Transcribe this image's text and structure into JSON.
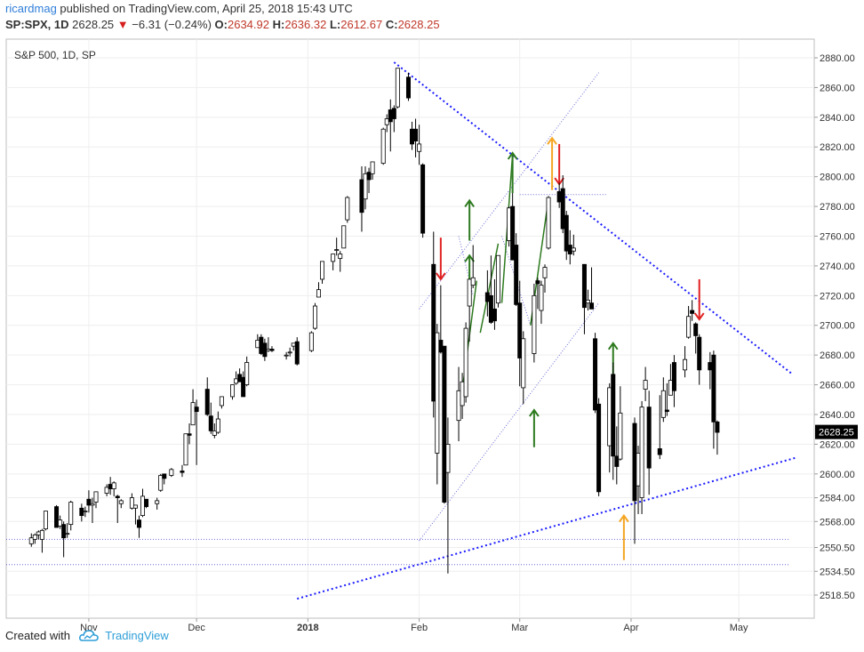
{
  "header": {
    "author": "ricardmag",
    "published_text": "published on TradingView.com, April 25, 2018 15:43 UTC",
    "symbol": "SP:SPX, 1D",
    "price": "2628.25",
    "change": "−6.31 (−0.24%)",
    "o_label": "O:",
    "o_value": "2634.92",
    "h_label": "H:",
    "h_value": "2636.32",
    "l_label": "L:",
    "l_value": "2612.67",
    "c_label": "C:",
    "c_value": "2628.25"
  },
  "footer": {
    "created_with": "Created with",
    "brand": "TradingView"
  },
  "chart_data": {
    "type": "candlestick",
    "title": "S&P 500, 1D, SP",
    "last_price_label": "2628.25",
    "y_ticks": [
      2518.5,
      2534.5,
      2550.5,
      2568.0,
      2584.0,
      2600.0,
      2620.0,
      2640.0,
      2660.0,
      2680.0,
      2700.0,
      2720.0,
      2740.0,
      2760.0,
      2780.0,
      2800.0,
      2820.0,
      2840.0,
      2860.0,
      2880.0
    ],
    "y_tick_labels": [
      "2518.50",
      "2534.50",
      "2550.50",
      "2568.00",
      "2584.00",
      "2600.00",
      "2620.00",
      "2640.00",
      "2660.00",
      "2680.00",
      "2700.00",
      "2720.00",
      "2740.00",
      "2760.00",
      "2780.00",
      "2800.00",
      "2820.00",
      "2840.00",
      "2860.00",
      "2880.00"
    ],
    "ylim": [
      2510,
      2890
    ],
    "x_labels": [
      "Nov",
      "Dec",
      "2018",
      "Feb",
      "Mar",
      "Apr",
      "May"
    ],
    "x_label_dates": [
      "2017-11-01",
      "2017-12-01",
      "2018-01-01",
      "2018-02-01",
      "2018-03-01",
      "2018-04-01",
      "2018-05-01"
    ],
    "xlim": [
      "2017-10-16",
      "2018-05-18"
    ],
    "grid": true,
    "colors": {
      "up_fill": "#ffffff",
      "down_fill": "#000000",
      "candle_stroke": "#000000",
      "trend": "#1a1aff",
      "arrow_up": "#2d7a1f",
      "arrow_down": "#e02020",
      "arrow_orange": "#f5a623",
      "last_price_bg": "#000000"
    },
    "candles": [
      {
        "d": "2017-10-16",
        "o": 2553,
        "h": 2560,
        "l": 2551,
        "c": 2557
      },
      {
        "d": "2017-10-17",
        "o": 2556,
        "h": 2560,
        "l": 2553,
        "c": 2559
      },
      {
        "d": "2017-10-18",
        "o": 2559,
        "h": 2562,
        "l": 2556,
        "c": 2561
      },
      {
        "d": "2017-10-19",
        "o": 2556,
        "h": 2563,
        "l": 2547,
        "c": 2562
      },
      {
        "d": "2017-10-20",
        "o": 2563,
        "h": 2575,
        "l": 2562,
        "c": 2575
      },
      {
        "d": "2017-10-23",
        "o": 2578,
        "h": 2579,
        "l": 2564,
        "c": 2564
      },
      {
        "d": "2017-10-24",
        "o": 2565,
        "h": 2572,
        "l": 2563,
        "c": 2569
      },
      {
        "d": "2017-10-25",
        "o": 2566,
        "h": 2568,
        "l": 2544,
        "c": 2557
      },
      {
        "d": "2017-10-26",
        "o": 2560,
        "h": 2567,
        "l": 2557,
        "c": 2560
      },
      {
        "d": "2017-10-27",
        "o": 2566,
        "h": 2582,
        "l": 2562,
        "c": 2581
      },
      {
        "d": "2017-10-30",
        "o": 2577,
        "h": 2580,
        "l": 2568,
        "c": 2572
      },
      {
        "d": "2017-10-31",
        "o": 2575,
        "h": 2578,
        "l": 2571,
        "c": 2575
      },
      {
        "d": "2017-11-01",
        "o": 2583,
        "h": 2589,
        "l": 2574,
        "c": 2579
      },
      {
        "d": "2017-11-02",
        "o": 2579,
        "h": 2584,
        "l": 2567,
        "c": 2580
      },
      {
        "d": "2017-11-03",
        "o": 2581,
        "h": 2588,
        "l": 2577,
        "c": 2588
      },
      {
        "d": "2017-11-06",
        "o": 2587,
        "h": 2593,
        "l": 2585,
        "c": 2591
      },
      {
        "d": "2017-11-07",
        "o": 2593,
        "h": 2598,
        "l": 2586,
        "c": 2590
      },
      {
        "d": "2017-11-08",
        "o": 2590,
        "h": 2595,
        "l": 2585,
        "c": 2594
      },
      {
        "d": "2017-11-09",
        "o": 2585,
        "h": 2586,
        "l": 2567,
        "c": 2584
      },
      {
        "d": "2017-11-10",
        "o": 2580,
        "h": 2583,
        "l": 2577,
        "c": 2582
      },
      {
        "d": "2017-11-13",
        "o": 2577,
        "h": 2587,
        "l": 2576,
        "c": 2584
      },
      {
        "d": "2017-11-14",
        "o": 2577,
        "h": 2579,
        "l": 2566,
        "c": 2579
      },
      {
        "d": "2017-11-15",
        "o": 2569,
        "h": 2572,
        "l": 2557,
        "c": 2564
      },
      {
        "d": "2017-11-16",
        "o": 2572,
        "h": 2590,
        "l": 2571,
        "c": 2585
      },
      {
        "d": "2017-11-17",
        "o": 2583,
        "h": 2583,
        "l": 2577,
        "c": 2578
      },
      {
        "d": "2017-11-20",
        "o": 2580,
        "h": 2584,
        "l": 2576,
        "c": 2582
      },
      {
        "d": "2017-11-21",
        "o": 2589,
        "h": 2600,
        "l": 2588,
        "c": 2599
      },
      {
        "d": "2017-11-22",
        "o": 2600,
        "h": 2600,
        "l": 2593,
        "c": 2597
      },
      {
        "d": "2017-11-24",
        "o": 2599,
        "h": 2604,
        "l": 2598,
        "c": 2603
      },
      {
        "d": "2017-11-27",
        "o": 2602,
        "h": 2606,
        "l": 2598,
        "c": 2601
      },
      {
        "d": "2017-11-28",
        "o": 2606,
        "h": 2627,
        "l": 2606,
        "c": 2627
      },
      {
        "d": "2017-11-29",
        "o": 2627,
        "h": 2634,
        "l": 2620,
        "c": 2626
      },
      {
        "d": "2017-11-30",
        "o": 2633,
        "h": 2657,
        "l": 2633,
        "c": 2648
      },
      {
        "d": "2017-12-01",
        "o": 2645,
        "h": 2650,
        "l": 2606,
        "c": 2642
      },
      {
        "d": "2017-12-04",
        "o": 2657,
        "h": 2665,
        "l": 2639,
        "c": 2640
      },
      {
        "d": "2017-12-05",
        "o": 2639,
        "h": 2648,
        "l": 2627,
        "c": 2629
      },
      {
        "d": "2017-12-06",
        "o": 2626,
        "h": 2634,
        "l": 2624,
        "c": 2629
      },
      {
        "d": "2017-12-07",
        "o": 2628,
        "h": 2642,
        "l": 2627,
        "c": 2637
      },
      {
        "d": "2017-12-08",
        "o": 2646,
        "h": 2651,
        "l": 2644,
        "c": 2652
      },
      {
        "d": "2017-12-11",
        "o": 2652,
        "h": 2660,
        "l": 2650,
        "c": 2660
      },
      {
        "d": "2017-12-12",
        "o": 2661,
        "h": 2669,
        "l": 2660,
        "c": 2664
      },
      {
        "d": "2017-12-13",
        "o": 2667,
        "h": 2671,
        "l": 2662,
        "c": 2662
      },
      {
        "d": "2017-12-14",
        "o": 2665,
        "h": 2669,
        "l": 2652,
        "c": 2652
      },
      {
        "d": "2017-12-15",
        "o": 2660,
        "h": 2679,
        "l": 2659,
        "c": 2675
      },
      {
        "d": "2017-12-18",
        "o": 2685,
        "h": 2694,
        "l": 2685,
        "c": 2690
      },
      {
        "d": "2017-12-19",
        "o": 2692,
        "h": 2694,
        "l": 2680,
        "c": 2681
      },
      {
        "d": "2017-12-20",
        "o": 2688,
        "h": 2691,
        "l": 2676,
        "c": 2679
      },
      {
        "d": "2017-12-21",
        "o": 2683,
        "h": 2692,
        "l": 2682,
        "c": 2684
      },
      {
        "d": "2017-12-22",
        "o": 2684,
        "h": 2686,
        "l": 2682,
        "c": 2683
      },
      {
        "d": "2017-12-26",
        "o": 2680,
        "h": 2682,
        "l": 2677,
        "c": 2680
      },
      {
        "d": "2017-12-27",
        "o": 2682,
        "h": 2685,
        "l": 2679,
        "c": 2682
      },
      {
        "d": "2017-12-28",
        "o": 2686,
        "h": 2688,
        "l": 2683,
        "c": 2688
      },
      {
        "d": "2017-12-29",
        "o": 2689,
        "h": 2692,
        "l": 2673,
        "c": 2674
      },
      {
        "d": "2018-01-02",
        "o": 2683,
        "h": 2696,
        "l": 2682,
        "c": 2695
      },
      {
        "d": "2018-01-03",
        "o": 2698,
        "h": 2715,
        "l": 2697,
        "c": 2713
      },
      {
        "d": "2018-01-04",
        "o": 2719,
        "h": 2729,
        "l": 2719,
        "c": 2724
      },
      {
        "d": "2018-01-05",
        "o": 2731,
        "h": 2743,
        "l": 2728,
        "c": 2743
      },
      {
        "d": "2018-01-08",
        "o": 2743,
        "h": 2748,
        "l": 2737,
        "c": 2748
      },
      {
        "d": "2018-01-09",
        "o": 2751,
        "h": 2759,
        "l": 2747,
        "c": 2751
      },
      {
        "d": "2018-01-10",
        "o": 2745,
        "h": 2750,
        "l": 2736,
        "c": 2748
      },
      {
        "d": "2018-01-11",
        "o": 2752,
        "h": 2767,
        "l": 2752,
        "c": 2767
      },
      {
        "d": "2018-01-12",
        "o": 2771,
        "h": 2787,
        "l": 2769,
        "c": 2786
      },
      {
        "d": "2018-01-16",
        "o": 2798,
        "h": 2807,
        "l": 2763,
        "c": 2776
      },
      {
        "d": "2018-01-17",
        "o": 2785,
        "h": 2807,
        "l": 2778,
        "c": 2802
      },
      {
        "d": "2018-01-18",
        "o": 2803,
        "h": 2806,
        "l": 2789,
        "c": 2798
      },
      {
        "d": "2018-01-19",
        "o": 2802,
        "h": 2810,
        "l": 2798,
        "c": 2810
      },
      {
        "d": "2018-01-22",
        "o": 2809,
        "h": 2833,
        "l": 2808,
        "c": 2832
      },
      {
        "d": "2018-01-23",
        "o": 2835,
        "h": 2842,
        "l": 2830,
        "c": 2839
      },
      {
        "d": "2018-01-24",
        "o": 2845,
        "h": 2852,
        "l": 2817,
        "c": 2837
      },
      {
        "d": "2018-01-25",
        "o": 2846,
        "h": 2848,
        "l": 2830,
        "c": 2839
      },
      {
        "d": "2018-01-26",
        "o": 2847,
        "h": 2873,
        "l": 2846,
        "c": 2873
      },
      {
        "d": "2018-01-29",
        "o": 2867,
        "h": 2870,
        "l": 2851,
        "c": 2853
      },
      {
        "d": "2018-01-30",
        "o": 2832,
        "h": 2837,
        "l": 2818,
        "c": 2822
      },
      {
        "d": "2018-01-31",
        "o": 2832,
        "h": 2839,
        "l": 2813,
        "c": 2824
      },
      {
        "d": "2018-02-01",
        "o": 2817,
        "h": 2835,
        "l": 2808,
        "c": 2822
      },
      {
        "d": "2018-02-02",
        "o": 2808,
        "h": 2809,
        "l": 2759,
        "c": 2762
      },
      {
        "d": "2018-02-05",
        "o": 2741,
        "h": 2763,
        "l": 2638,
        "c": 2649
      },
      {
        "d": "2018-02-06",
        "o": 2614,
        "h": 2701,
        "l": 2593,
        "c": 2695
      },
      {
        "d": "2018-02-07",
        "o": 2690,
        "h": 2727,
        "l": 2681,
        "c": 2682
      },
      {
        "d": "2018-02-08",
        "o": 2686,
        "h": 2686,
        "l": 2580,
        "c": 2581
      },
      {
        "d": "2018-02-09",
        "o": 2601,
        "h": 2638,
        "l": 2533,
        "c": 2620
      },
      {
        "d": "2018-02-12",
        "o": 2636,
        "h": 2672,
        "l": 2622,
        "c": 2656
      },
      {
        "d": "2018-02-13",
        "o": 2646,
        "h": 2668,
        "l": 2637,
        "c": 2662
      },
      {
        "d": "2018-02-14",
        "o": 2652,
        "h": 2702,
        "l": 2648,
        "c": 2698
      },
      {
        "d": "2018-02-15",
        "o": 2713,
        "h": 2731,
        "l": 2689,
        "c": 2731
      },
      {
        "d": "2018-02-16",
        "o": 2727,
        "h": 2754,
        "l": 2725,
        "c": 2732
      },
      {
        "d": "2018-02-20",
        "o": 2722,
        "h": 2737,
        "l": 2706,
        "c": 2716
      },
      {
        "d": "2018-02-21",
        "o": 2720,
        "h": 2747,
        "l": 2701,
        "c": 2702
      },
      {
        "d": "2018-02-22",
        "o": 2711,
        "h": 2731,
        "l": 2697,
        "c": 2703
      },
      {
        "d": "2018-02-23",
        "o": 2715,
        "h": 2747,
        "l": 2712,
        "c": 2747
      },
      {
        "d": "2018-02-26",
        "o": 2757,
        "h": 2780,
        "l": 2753,
        "c": 2779
      },
      {
        "d": "2018-02-27",
        "o": 2780,
        "h": 2789,
        "l": 2744,
        "c": 2744
      },
      {
        "d": "2018-02-28",
        "o": 2754,
        "h": 2762,
        "l": 2713,
        "c": 2714
      },
      {
        "d": "2018-03-01",
        "o": 2715,
        "h": 2730,
        "l": 2659,
        "c": 2678
      },
      {
        "d": "2018-03-02",
        "o": 2658,
        "h": 2696,
        "l": 2647,
        "c": 2691
      },
      {
        "d": "2018-03-05",
        "o": 2681,
        "h": 2728,
        "l": 2675,
        "c": 2720
      },
      {
        "d": "2018-03-06",
        "o": 2730,
        "h": 2732,
        "l": 2711,
        "c": 2728
      },
      {
        "d": "2018-03-07",
        "o": 2710,
        "h": 2730,
        "l": 2701,
        "c": 2727
      },
      {
        "d": "2018-03-08",
        "o": 2732,
        "h": 2741,
        "l": 2722,
        "c": 2739
      },
      {
        "d": "2018-03-09",
        "o": 2752,
        "h": 2787,
        "l": 2751,
        "c": 2786
      },
      {
        "d": "2018-03-12",
        "o": 2790,
        "h": 2796,
        "l": 2779,
        "c": 2783
      },
      {
        "d": "2018-03-13",
        "o": 2792,
        "h": 2801,
        "l": 2762,
        "c": 2765
      },
      {
        "d": "2018-03-14",
        "o": 2774,
        "h": 2777,
        "l": 2744,
        "c": 2750
      },
      {
        "d": "2018-03-15",
        "o": 2754,
        "h": 2764,
        "l": 2741,
        "c": 2748
      },
      {
        "d": "2018-03-16",
        "o": 2750,
        "h": 2761,
        "l": 2747,
        "c": 2752
      },
      {
        "d": "2018-03-19",
        "o": 2741,
        "h": 2741,
        "l": 2694,
        "c": 2712
      },
      {
        "d": "2018-03-20",
        "o": 2715,
        "h": 2724,
        "l": 2710,
        "c": 2717
      },
      {
        "d": "2018-03-21",
        "o": 2715,
        "h": 2739,
        "l": 2713,
        "c": 2711
      },
      {
        "d": "2018-03-22",
        "o": 2691,
        "h": 2695,
        "l": 2641,
        "c": 2643
      },
      {
        "d": "2018-03-23",
        "o": 2647,
        "h": 2651,
        "l": 2585,
        "c": 2588
      },
      {
        "d": "2018-03-26",
        "o": 2619,
        "h": 2661,
        "l": 2601,
        "c": 2658
      },
      {
        "d": "2018-03-27",
        "o": 2667,
        "h": 2675,
        "l": 2596,
        "c": 2612
      },
      {
        "d": "2018-03-28",
        "o": 2612,
        "h": 2632,
        "l": 2593,
        "c": 2605
      },
      {
        "d": "2018-03-29",
        "o": 2610,
        "h": 2659,
        "l": 2609,
        "c": 2641
      },
      {
        "d": "2018-04-02",
        "o": 2634,
        "h": 2638,
        "l": 2553,
        "c": 2582
      },
      {
        "d": "2018-04-03",
        "o": 2592,
        "h": 2619,
        "l": 2573,
        "c": 2614
      },
      {
        "d": "2018-04-04",
        "o": 2584,
        "h": 2649,
        "l": 2573,
        "c": 2645
      },
      {
        "d": "2018-04-05",
        "o": 2657,
        "h": 2672,
        "l": 2649,
        "c": 2663
      },
      {
        "d": "2018-04-06",
        "o": 2645,
        "h": 2656,
        "l": 2586,
        "c": 2604
      },
      {
        "d": "2018-04-09",
        "o": 2617,
        "h": 2653,
        "l": 2610,
        "c": 2613
      },
      {
        "d": "2018-04-10",
        "o": 2638,
        "h": 2665,
        "l": 2635,
        "c": 2656
      },
      {
        "d": "2018-04-11",
        "o": 2643,
        "h": 2661,
        "l": 2639,
        "c": 2642
      },
      {
        "d": "2018-04-12",
        "o": 2653,
        "h": 2674,
        "l": 2653,
        "c": 2663
      },
      {
        "d": "2018-04-13",
        "o": 2675,
        "h": 2680,
        "l": 2645,
        "c": 2656
      },
      {
        "d": "2018-04-16",
        "o": 2670,
        "h": 2686,
        "l": 2665,
        "c": 2677
      },
      {
        "d": "2018-04-17",
        "o": 2692,
        "h": 2713,
        "l": 2691,
        "c": 2706
      },
      {
        "d": "2018-04-18",
        "o": 2710,
        "h": 2717,
        "l": 2703,
        "c": 2708
      },
      {
        "d": "2018-04-19",
        "o": 2701,
        "h": 2702,
        "l": 2681,
        "c": 2693
      },
      {
        "d": "2018-04-20",
        "o": 2692,
        "h": 2694,
        "l": 2660,
        "c": 2670
      },
      {
        "d": "2018-04-23",
        "o": 2675,
        "h": 2682,
        "l": 2657,
        "c": 2670
      },
      {
        "d": "2018-04-24",
        "o": 2680,
        "h": 2683,
        "l": 2617,
        "c": 2635
      },
      {
        "d": "2018-04-25",
        "o": 2635,
        "h": 2636,
        "l": 2613,
        "c": 2628
      }
    ]
  }
}
